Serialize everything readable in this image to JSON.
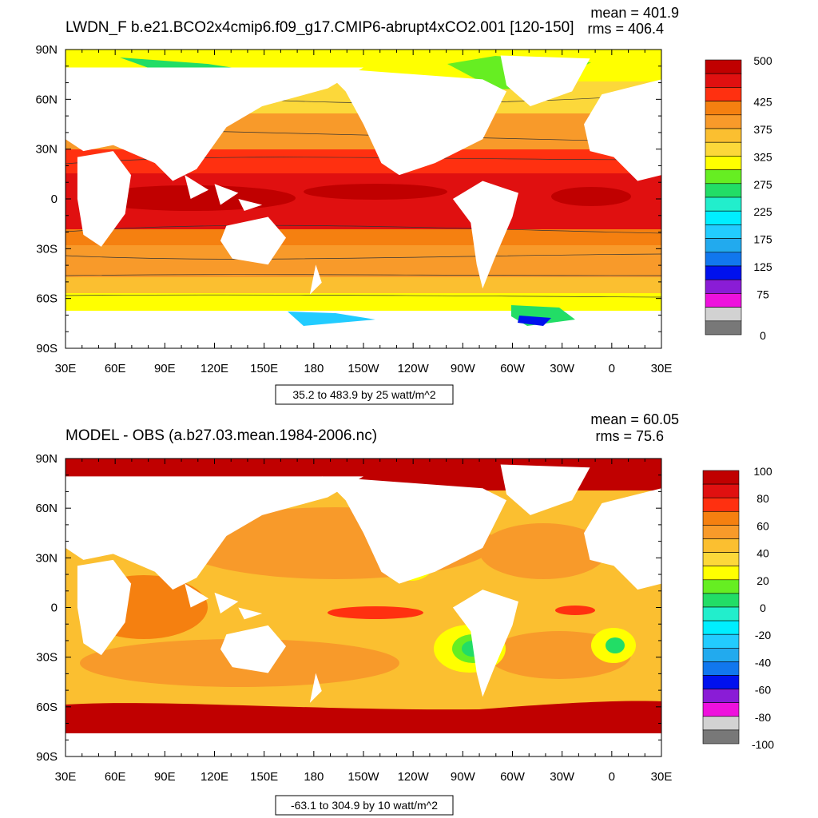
{
  "panels": [
    {
      "title": "LWDN_F b.e21.BCO2x4cmip6.f09_g17.CMIP6-abrupt4xCO2.001 [120-150]",
      "mean_label": "mean = 401.9",
      "rms_label": "rms = 406.4",
      "range_label": "35.2 to 483.9 by 25 watt/m^2",
      "lat_ticks": [
        "90N",
        "60N",
        "30N",
        "0",
        "30S",
        "60S",
        "90S"
      ],
      "lon_ticks": [
        "30E",
        "60E",
        "90E",
        "120E",
        "150E",
        "180",
        "150W",
        "120W",
        "90W",
        "60W",
        "30W",
        "0",
        "30E"
      ],
      "colorbar": {
        "colors": [
          "#c00000",
          "#e01010",
          "#ff3010",
          "#f58010",
          "#f89a2a",
          "#fbbf30",
          "#fcd83a",
          "#ffff00",
          "#66ee22",
          "#22dd66",
          "#22eecc",
          "#00eeff",
          "#22ccff",
          "#22aaee",
          "#1177ee",
          "#0011ee",
          "#8a1cd6",
          "#ee11dd",
          "#d2d2d2",
          "#787878"
        ],
        "labels": [
          "500",
          "425",
          "375",
          "325",
          "275",
          "225",
          "175",
          "125",
          "75",
          "0"
        ]
      }
    },
    {
      "title": "MODEL - OBS (a.b27.03.mean.1984-2006.nc)",
      "mean_label": "mean = 60.05",
      "rms_label": "rms = 75.6",
      "range_label": "-63.1 to 304.9 by 10 watt/m^2",
      "lat_ticks": [
        "90N",
        "60N",
        "30N",
        "0",
        "30S",
        "60S",
        "90S"
      ],
      "lon_ticks": [
        "30E",
        "60E",
        "90E",
        "120E",
        "150E",
        "180",
        "150W",
        "120W",
        "90W",
        "60W",
        "30W",
        "0",
        "30E"
      ],
      "colorbar": {
        "colors": [
          "#c00000",
          "#e01010",
          "#ff3010",
          "#f58010",
          "#f89a2a",
          "#fbbf30",
          "#fcd83a",
          "#ffff00",
          "#66ee22",
          "#22dd66",
          "#22eecc",
          "#00eeff",
          "#22ccff",
          "#22aaee",
          "#1177ee",
          "#0011ee",
          "#8a1cd6",
          "#ee11dd",
          "#d2d2d2",
          "#787878"
        ],
        "labels": [
          "100",
          "80",
          "60",
          "40",
          "20",
          "0",
          "-20",
          "-40",
          "-60",
          "-80",
          "-100"
        ]
      }
    }
  ]
}
